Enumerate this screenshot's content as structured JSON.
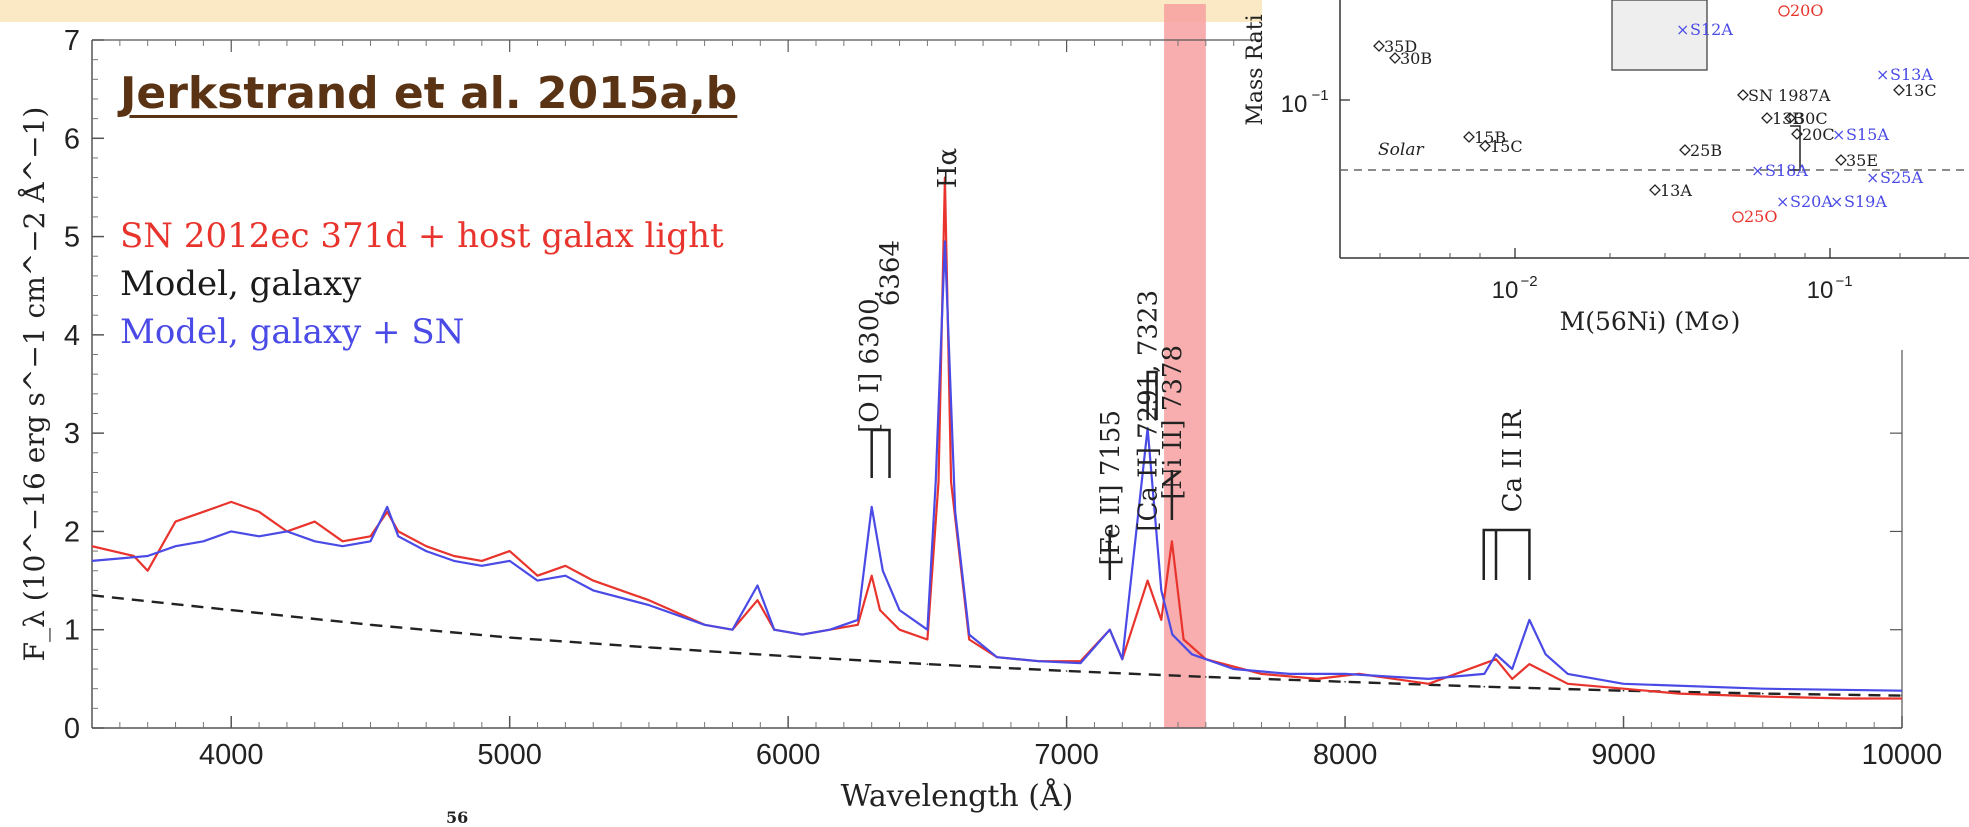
{
  "top_band_color": "#fbe8c4",
  "citation": "Jerkstrand et al. 2015a,b",
  "legend": [
    "SN 2012ec 371d + host galax light",
    "Model, galaxy",
    "Model, galaxy + SN"
  ],
  "colors": {
    "observed": "#e8342c",
    "model_galaxy": "#222222",
    "model_sn": "#4a4ae6",
    "highlight": "#f7a0a0",
    "inset_red": "#e8342c",
    "inset_blue": "#4a4ae6"
  },
  "footnote": "56",
  "chart_data": [
    {
      "type": "line",
      "xlabel": "Wavelength (Å)",
      "ylabel": "F_λ (10^−16 erg s^−1 cm^−2 Å^−1)",
      "xlim": [
        3500,
        10000
      ],
      "ylim": [
        0,
        7
      ],
      "xticks": [
        "4000",
        "5000",
        "6000",
        "7000",
        "8000",
        "9000",
        "10000"
      ],
      "yticks": [
        "0",
        "1",
        "2",
        "3",
        "4",
        "5",
        "6",
        "7"
      ],
      "highlight_band": [
        7350,
        7500
      ],
      "series": [
        {
          "name": "SN 2012ec 371d + host galax light",
          "style": "solid",
          "x": [
            3500,
            3650,
            3700,
            3800,
            3900,
            3950,
            4000,
            4100,
            4200,
            4300,
            4400,
            4500,
            4560,
            4600,
            4700,
            4800,
            4900,
            5000,
            5100,
            5200,
            5300,
            5500,
            5700,
            5800,
            5890,
            5950,
            6050,
            6150,
            6250,
            6300,
            6330,
            6400,
            6500,
            6540,
            6563,
            6585,
            6650,
            6750,
            6900,
            7050,
            7155,
            7200,
            7291,
            7340,
            7378,
            7420,
            7500,
            7700,
            7900,
            8050,
            8300,
            8542,
            8600,
            8662,
            8800,
            9000,
            9200,
            9500,
            9800,
            10000
          ],
          "y": [
            1.85,
            1.75,
            1.6,
            2.1,
            2.2,
            2.25,
            2.3,
            2.2,
            2.0,
            2.1,
            1.9,
            1.95,
            2.2,
            2.0,
            1.85,
            1.75,
            1.7,
            1.8,
            1.55,
            1.65,
            1.5,
            1.3,
            1.05,
            1.0,
            1.3,
            1.0,
            0.95,
            1.0,
            1.05,
            1.55,
            1.2,
            1.0,
            0.9,
            2.5,
            5.6,
            2.5,
            0.9,
            0.72,
            0.68,
            0.68,
            1.0,
            0.7,
            1.5,
            1.1,
            1.9,
            0.9,
            0.7,
            0.55,
            0.5,
            0.55,
            0.45,
            0.7,
            0.5,
            0.65,
            0.45,
            0.4,
            0.35,
            0.32,
            0.3,
            0.3
          ]
        },
        {
          "name": "Model, galaxy",
          "style": "dashed",
          "x": [
            3500,
            4000,
            4500,
            5000,
            5500,
            6000,
            6500,
            7000,
            7500,
            8000,
            8500,
            9000,
            9500,
            10000
          ],
          "y": [
            1.35,
            1.2,
            1.05,
            0.92,
            0.82,
            0.73,
            0.65,
            0.58,
            0.52,
            0.47,
            0.42,
            0.38,
            0.35,
            0.33
          ]
        },
        {
          "name": "Model, galaxy + SN",
          "style": "solid",
          "x": [
            3500,
            3700,
            3800,
            3900,
            4000,
            4100,
            4200,
            4300,
            4400,
            4500,
            4560,
            4600,
            4700,
            4800,
            4900,
            5000,
            5100,
            5200,
            5300,
            5500,
            5700,
            5800,
            5890,
            5950,
            6050,
            6150,
            6250,
            6300,
            6340,
            6400,
            6500,
            6530,
            6563,
            6600,
            6650,
            6750,
            6900,
            7050,
            7155,
            7200,
            7291,
            7340,
            7380,
            7450,
            7600,
            7800,
            8000,
            8300,
            8500,
            8542,
            8600,
            8662,
            8720,
            8800,
            9000,
            9500,
            10000
          ],
          "y": [
            1.7,
            1.75,
            1.85,
            1.9,
            2.0,
            1.95,
            2.0,
            1.9,
            1.85,
            1.9,
            2.25,
            1.95,
            1.8,
            1.7,
            1.65,
            1.7,
            1.5,
            1.55,
            1.4,
            1.25,
            1.05,
            1.0,
            1.45,
            1.0,
            0.95,
            1.0,
            1.1,
            2.25,
            1.6,
            1.2,
            1.0,
            2.5,
            4.95,
            2.2,
            0.95,
            0.72,
            0.68,
            0.66,
            1.0,
            0.7,
            3.05,
            1.4,
            0.95,
            0.75,
            0.6,
            0.55,
            0.55,
            0.5,
            0.55,
            0.75,
            0.6,
            1.1,
            0.75,
            0.55,
            0.45,
            0.4,
            0.38
          ]
        }
      ],
      "annotations": [
        {
          "text": "[O I] 6300,",
          "x": 6300
        },
        {
          "text": "6364",
          "x": 6364
        },
        {
          "text": "Hα",
          "x": 6563
        },
        {
          "text": "[Fe II] 7155",
          "x": 7155
        },
        {
          "text": "[Ca II] 7291, 7323",
          "x": 7291
        },
        {
          "text": "[Ni II] 7378",
          "x": 7378
        },
        {
          "text": "Ca II IR",
          "x": 8600
        }
      ]
    },
    {
      "type": "scatter",
      "xlabel": "M(56Ni) (M⊙)",
      "ylabel": "Mass Rati",
      "xscale": "log",
      "yscale": "log",
      "xticks": [
        "10^−2",
        "10^−1"
      ],
      "yticks": [
        "10^−1"
      ],
      "reference_line": {
        "label": "Solar",
        "style": "dashed"
      },
      "labels": {
        "black": [
          "35D",
          "30B",
          "15B",
          "15C",
          "25B",
          "13A",
          "SN 1987A",
          "13B",
          "30C",
          "20C",
          "35E",
          "13C"
        ],
        "blue": [
          "S12A",
          "S13A",
          "S15A",
          "S18A",
          "S20A",
          "S19A",
          "S25A"
        ],
        "red": [
          "20O",
          "25O"
        ]
      }
    }
  ]
}
